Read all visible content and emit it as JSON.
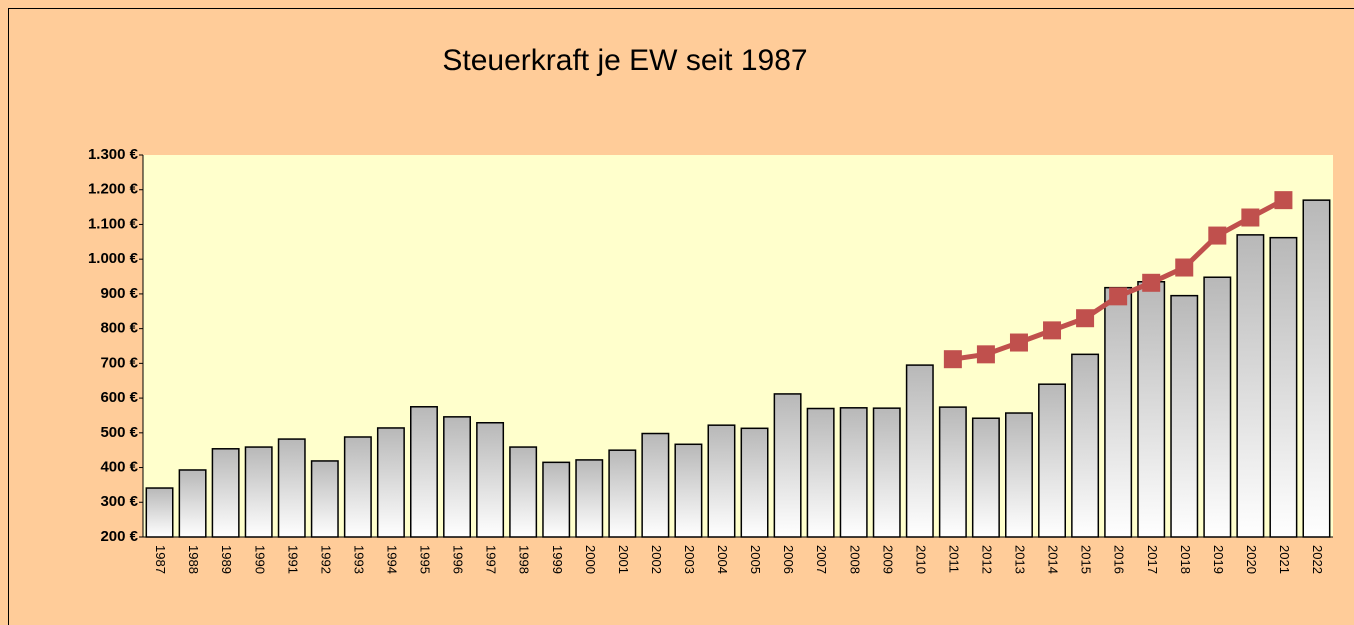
{
  "chart_data": {
    "type": "bar",
    "title": "Steuerkraft je EW seit 1987",
    "categories": [
      "1987",
      "1988",
      "1989",
      "1990",
      "1991",
      "1992",
      "1993",
      "1994",
      "1995",
      "1996",
      "1997",
      "1998",
      "1999",
      "2000",
      "2001",
      "2002",
      "2003",
      "2004",
      "2005",
      "2006",
      "2007",
      "2008",
      "2009",
      "2010",
      "2011",
      "2012",
      "2013",
      "2014",
      "2015",
      "2016",
      "2017",
      "2018",
      "2019",
      "2020",
      "2021",
      "2022"
    ],
    "series": [
      {
        "type": "bar",
        "color": "#c0c0c0",
        "values": [
          341,
          393,
          454,
          459,
          482,
          419,
          488,
          514,
          575,
          546,
          529,
          459,
          415,
          422,
          450,
          498,
          467,
          522,
          513,
          612,
          570,
          572,
          571,
          695,
          574,
          542,
          557,
          640,
          726,
          918,
          935,
          895,
          948,
          1070,
          1062,
          1170
        ]
      },
      {
        "type": "line",
        "color": "#c0504d",
        "values": [
          null,
          null,
          null,
          null,
          null,
          null,
          null,
          null,
          null,
          null,
          null,
          null,
          null,
          null,
          null,
          null,
          null,
          null,
          null,
          null,
          null,
          null,
          null,
          null,
          712,
          726,
          760,
          795,
          830,
          893,
          932,
          976,
          1068,
          1120,
          1170,
          null
        ]
      }
    ],
    "ylim": [
      200,
      1300
    ],
    "yticks": [
      {
        "value": 200,
        "label": "200 €"
      },
      {
        "value": 300,
        "label": "300 €"
      },
      {
        "value": 400,
        "label": "400 €"
      },
      {
        "value": 500,
        "label": "500 €"
      },
      {
        "value": 600,
        "label": "600 €"
      },
      {
        "value": 700,
        "label": "700 €"
      },
      {
        "value": 800,
        "label": "800 €"
      },
      {
        "value": 900,
        "label": "900 €"
      },
      {
        "value": 1000,
        "label": "1.000 €"
      },
      {
        "value": 1100,
        "label": "1.100 €"
      },
      {
        "value": 1200,
        "label": "1.200 €"
      },
      {
        "value": 1300,
        "label": "1.300 €"
      }
    ],
    "grid": false
  }
}
